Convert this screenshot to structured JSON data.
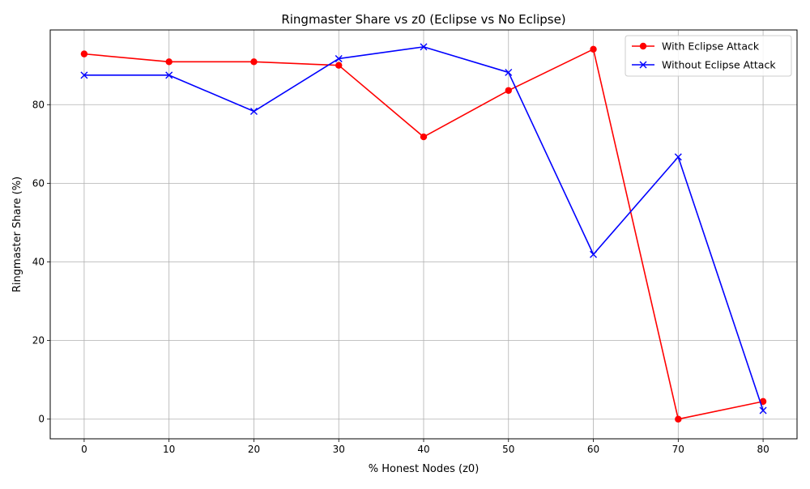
{
  "chart_data": {
    "type": "line",
    "title": "Ringmaster Share vs z0 (Eclipse vs No Eclipse)",
    "xlabel": "% Honest Nodes (z0)",
    "ylabel": "Ringmaster Share (%)",
    "x": [
      0,
      10,
      20,
      30,
      40,
      50,
      60,
      70,
      80
    ],
    "xlim": [
      -4,
      84
    ],
    "ylim": [
      -5,
      99
    ],
    "xticks": [
      0,
      10,
      20,
      30,
      40,
      50,
      60,
      70,
      80
    ],
    "yticks": [
      0,
      20,
      40,
      60,
      80
    ],
    "grid": true,
    "legend_position": "top-right",
    "series": [
      {
        "name": "With Eclipse Attack",
        "color": "#ff0000",
        "marker": "circle",
        "values": [
          92.9,
          90.9,
          90.9,
          90.0,
          71.8,
          83.6,
          94.1,
          0.0,
          4.5
        ]
      },
      {
        "name": "Without Eclipse Attack",
        "color": "#0000ff",
        "marker": "x",
        "values": [
          87.5,
          87.5,
          78.3,
          91.7,
          94.7,
          88.2,
          41.9,
          66.7,
          2.2
        ]
      }
    ]
  }
}
